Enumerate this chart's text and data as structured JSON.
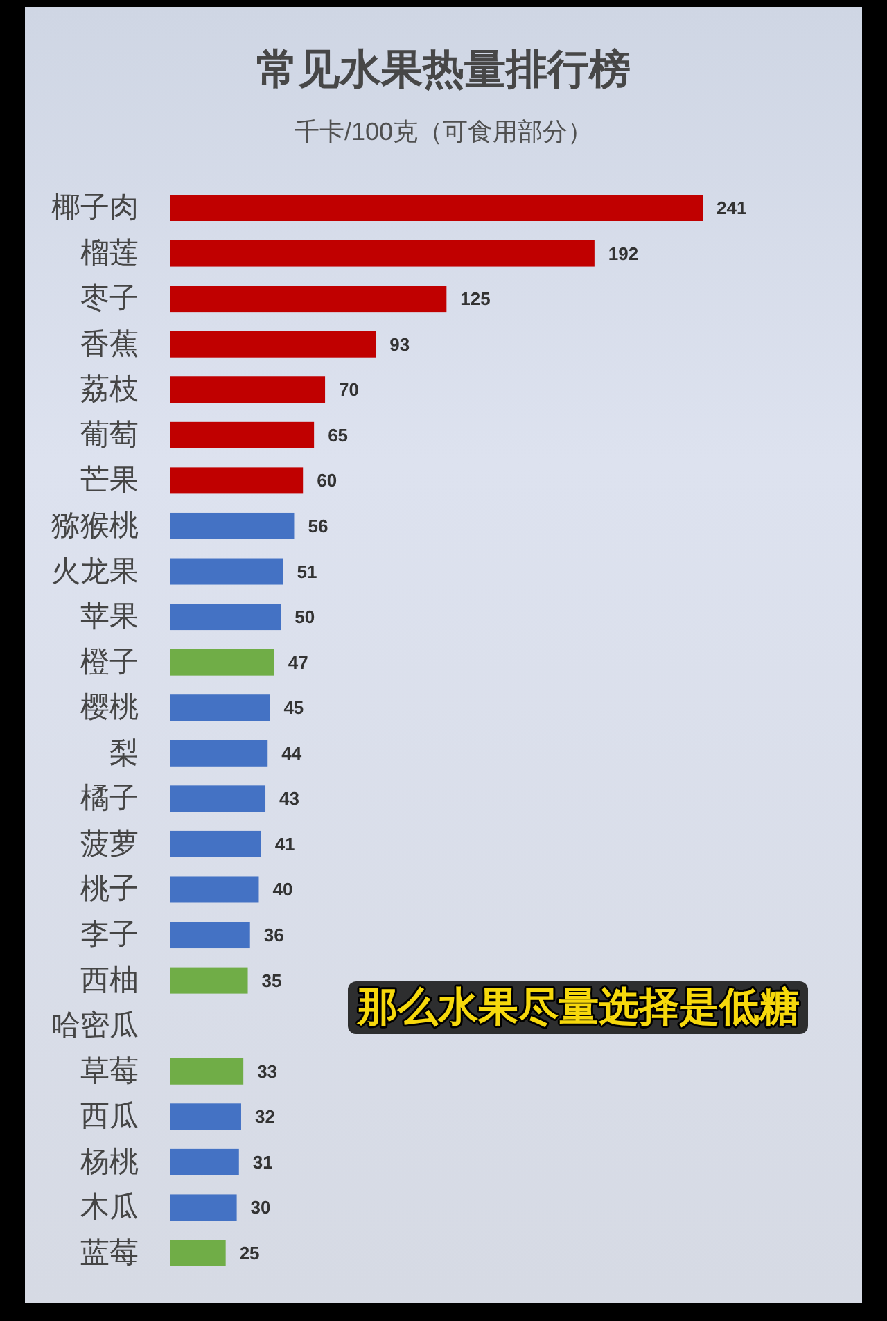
{
  "chart_data": {
    "type": "bar",
    "orientation": "horizontal",
    "title": "常见水果热量排行榜",
    "subtitle": "千卡/100克（可食用部分）",
    "categories": [
      "椰子肉",
      "榴莲",
      "枣子",
      "香蕉",
      "荔枝",
      "葡萄",
      "芒果",
      "猕猴桃",
      "火龙果",
      "苹果",
      "橙子",
      "樱桃",
      "梨",
      "橘子",
      "菠萝",
      "桃子",
      "李子",
      "西柚",
      "哈密瓜",
      "草莓",
      "西瓜",
      "杨桃",
      "木瓜",
      "蓝莓"
    ],
    "values": [
      241,
      192,
      125,
      93,
      70,
      65,
      60,
      56,
      51,
      50,
      47,
      45,
      44,
      43,
      41,
      40,
      36,
      35,
      null,
      33,
      32,
      31,
      30,
      25
    ],
    "colors": [
      "#c00000",
      "#c00000",
      "#c00000",
      "#c00000",
      "#c00000",
      "#c00000",
      "#c00000",
      "#4472c4",
      "#4472c4",
      "#4472c4",
      "#70ad47",
      "#4472c4",
      "#4472c4",
      "#4472c4",
      "#4472c4",
      "#4472c4",
      "#4472c4",
      "#70ad47",
      null,
      "#70ad47",
      "#4472c4",
      "#4472c4",
      "#4472c4",
      "#70ad47"
    ],
    "data_labels": true,
    "annotations": [
      "那么水果尽量选择是低糖"
    ]
  }
}
